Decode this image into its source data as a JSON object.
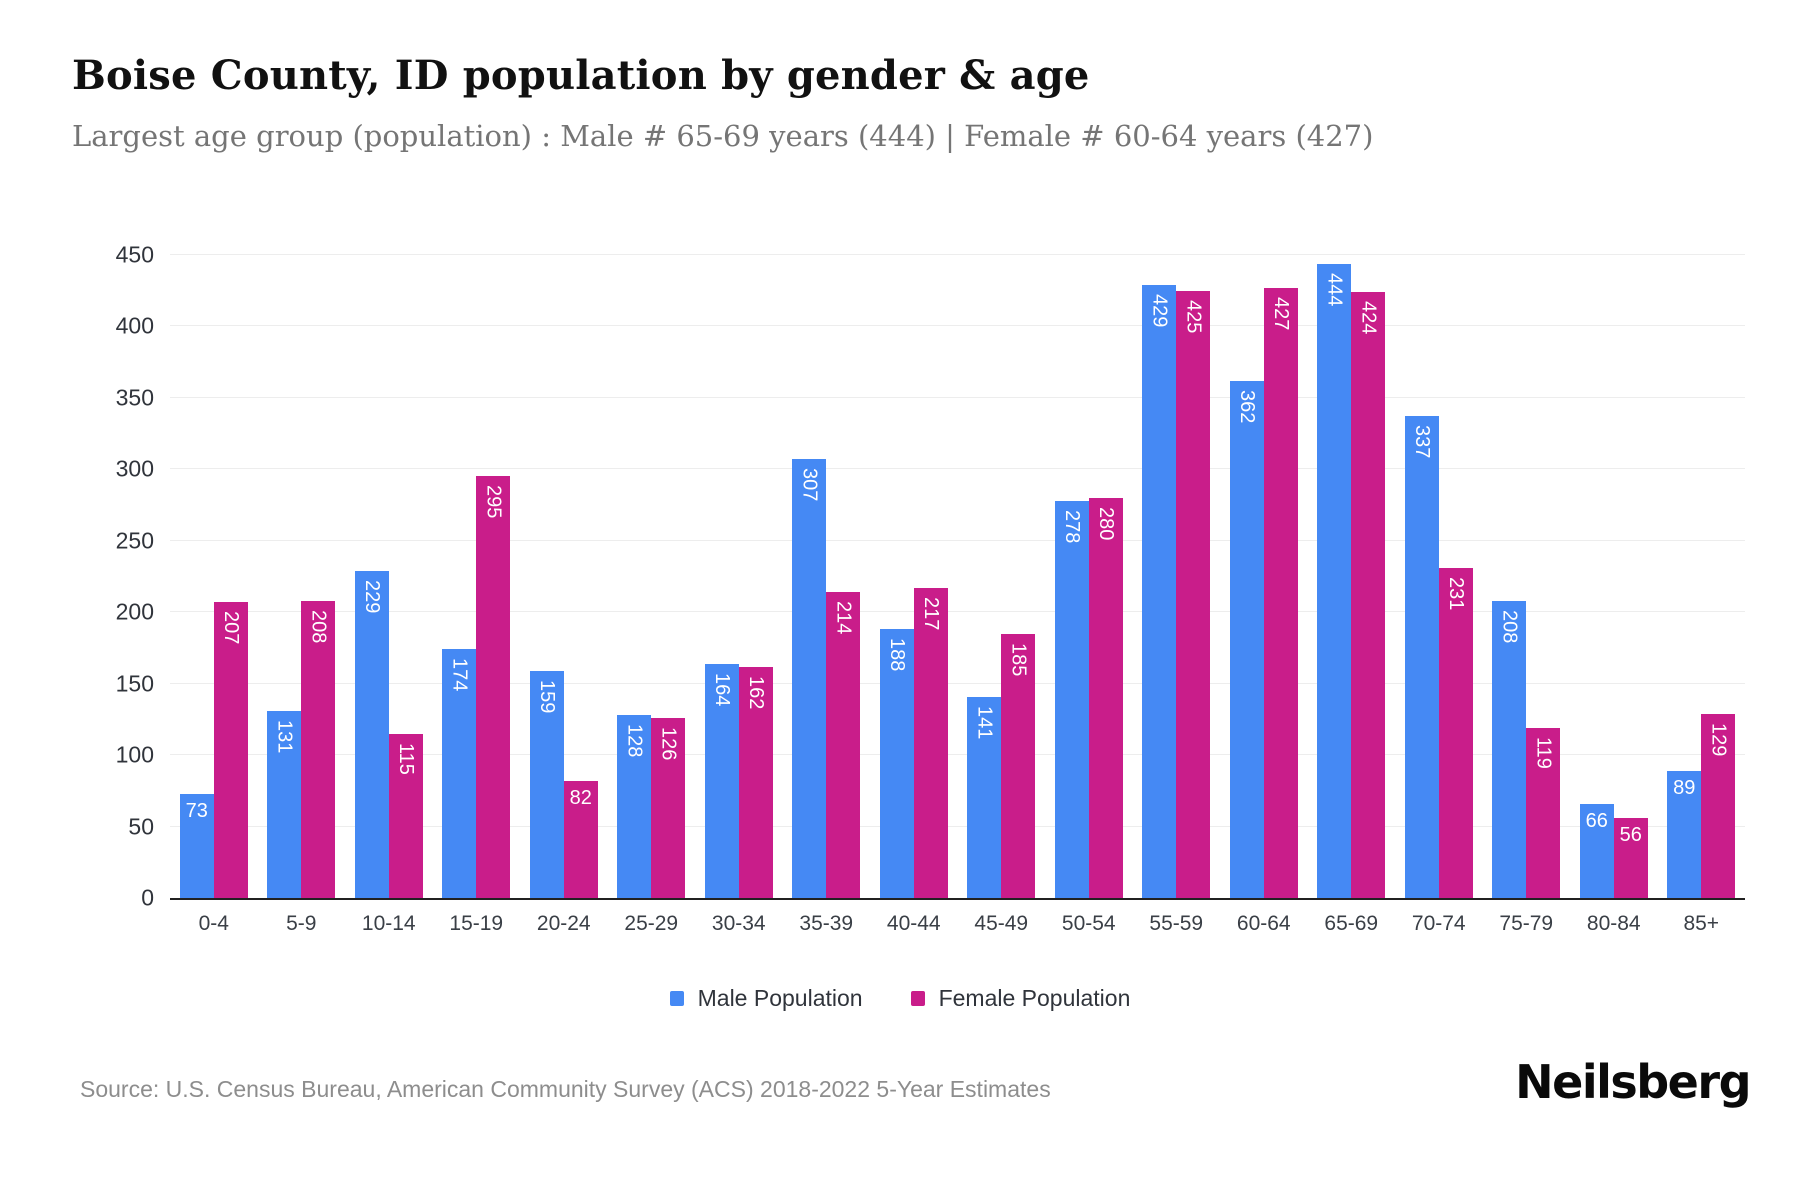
{
  "header": {
    "title": "Boise County, ID population by gender & age",
    "subtitle": "Largest age group (population) : Male # 65-69 years (444) | Female # 60-64 years (427)"
  },
  "chart_data": {
    "type": "bar",
    "title": "Boise County, ID population by gender & age",
    "categories": [
      "0-4",
      "5-9",
      "10-14",
      "15-19",
      "20-24",
      "25-29",
      "30-34",
      "35-39",
      "40-44",
      "45-49",
      "50-54",
      "55-59",
      "60-64",
      "65-69",
      "70-74",
      "75-79",
      "80-84",
      "85+"
    ],
    "series": [
      {
        "name": "Male Population",
        "color": "#4589f4",
        "values": [
          73,
          131,
          229,
          174,
          159,
          128,
          164,
          307,
          188,
          141,
          278,
          429,
          362,
          444,
          337,
          208,
          66,
          89
        ]
      },
      {
        "name": "Female Population",
        "color": "#c91d8a",
        "values": [
          207,
          208,
          115,
          295,
          82,
          126,
          162,
          214,
          217,
          185,
          280,
          425,
          427,
          424,
          231,
          119,
          56,
          129
        ]
      }
    ],
    "xlabel": "",
    "ylabel": "",
    "ylim": [
      0,
      450
    ],
    "yticks": [
      0,
      50,
      100,
      150,
      200,
      250,
      300,
      350,
      400,
      450
    ],
    "grid": true,
    "legend_position": "bottom",
    "bar_value_labels_shown": true
  },
  "footer": {
    "source": "Source: U.S. Census Bureau, American Community Survey (ACS) 2018-2022 5-Year Estimates",
    "logo": "Neilsberg"
  }
}
